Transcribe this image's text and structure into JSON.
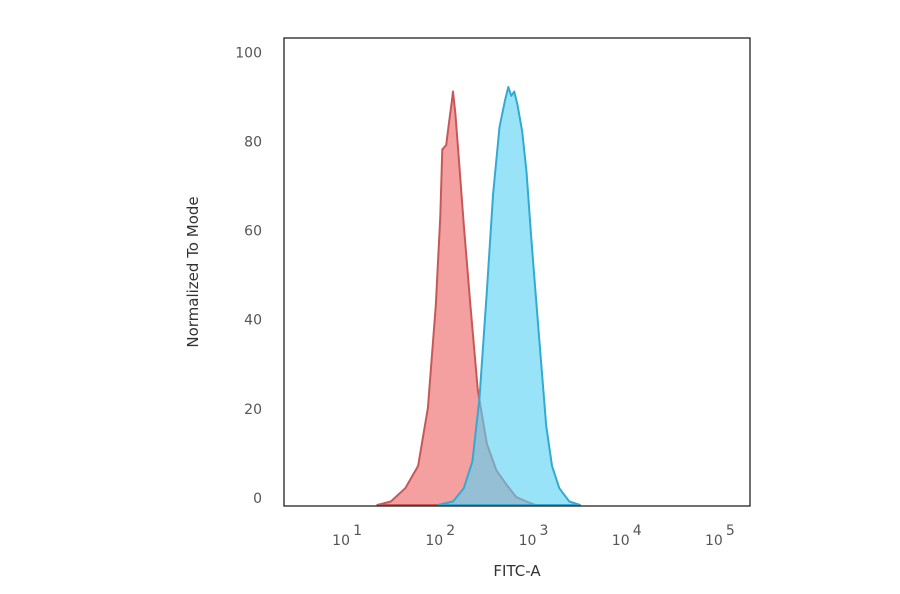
{
  "chart_data": {
    "type": "area",
    "title": "",
    "xlabel": "FITC-A",
    "ylabel": "Normalized To Mode",
    "x_scale": "log",
    "xlim": [
      2,
      200000
    ],
    "ylim": [
      0,
      105
    ],
    "grid": false,
    "x_ticks": [
      {
        "value": 10,
        "base": "10",
        "exp": "1"
      },
      {
        "value": 100,
        "base": "10",
        "exp": "2"
      },
      {
        "value": 1000,
        "base": "10",
        "exp": "3"
      },
      {
        "value": 10000,
        "base": "10",
        "exp": "4"
      },
      {
        "value": 100000,
        "base": "10",
        "exp": "5"
      }
    ],
    "y_ticks": [
      0,
      20,
      40,
      60,
      80,
      100
    ],
    "series": [
      {
        "color": "#f08080",
        "line_color": "#c85858",
        "points": [
          [
            20,
            0
          ],
          [
            28,
            1
          ],
          [
            40,
            4
          ],
          [
            55,
            9
          ],
          [
            70,
            22
          ],
          [
            85,
            45
          ],
          [
            95,
            65
          ],
          [
            100,
            80
          ],
          [
            110,
            81
          ],
          [
            118,
            86
          ],
          [
            125,
            90
          ],
          [
            130,
            93
          ],
          [
            138,
            88
          ],
          [
            150,
            78
          ],
          [
            170,
            63
          ],
          [
            200,
            45
          ],
          [
            240,
            26
          ],
          [
            300,
            14
          ],
          [
            380,
            8
          ],
          [
            480,
            5
          ],
          [
            620,
            2
          ],
          [
            800,
            1
          ],
          [
            1000,
            0
          ]
        ]
      },
      {
        "color": "#5ad2f4",
        "line_color": "#33aad2",
        "points": [
          [
            90,
            0
          ],
          [
            130,
            1
          ],
          [
            170,
            4
          ],
          [
            210,
            10
          ],
          [
            250,
            24
          ],
          [
            300,
            48
          ],
          [
            350,
            70
          ],
          [
            410,
            85
          ],
          [
            470,
            91
          ],
          [
            510,
            94
          ],
          [
            550,
            92
          ],
          [
            590,
            93
          ],
          [
            640,
            90
          ],
          [
            720,
            84
          ],
          [
            800,
            75
          ],
          [
            900,
            60
          ],
          [
            1000,
            48
          ],
          [
            1150,
            32
          ],
          [
            1300,
            18
          ],
          [
            1500,
            9
          ],
          [
            1800,
            4
          ],
          [
            2300,
            1
          ],
          [
            3000,
            0
          ]
        ]
      }
    ]
  }
}
